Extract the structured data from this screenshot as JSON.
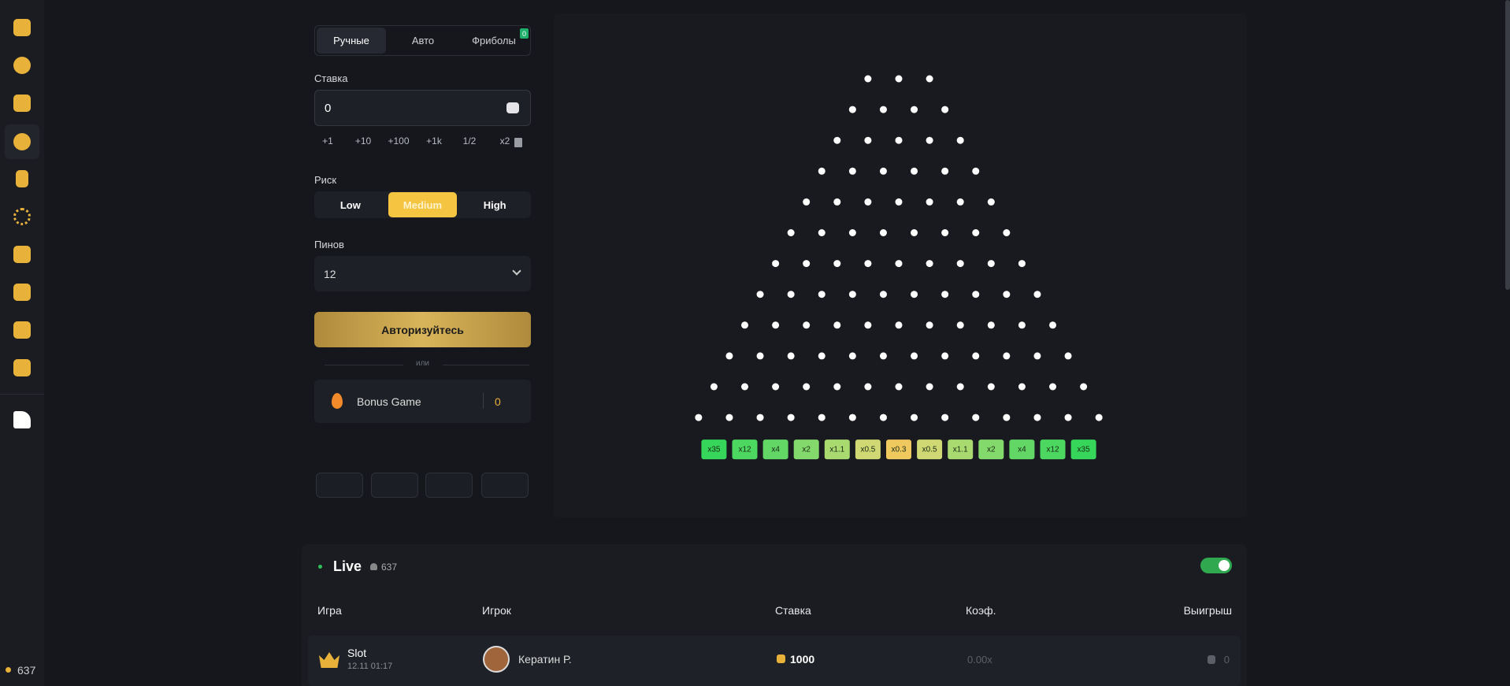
{
  "sidebar": {
    "balance": "637"
  },
  "tabs": [
    "Ручные",
    "Авто",
    "Фриболы"
  ],
  "freebets_badge": "0",
  "bet": {
    "label": "Ставка",
    "value": "0",
    "quick": [
      "+1",
      "+10",
      "+100",
      "+1k",
      "1/2",
      "x2"
    ]
  },
  "risk": {
    "label": "Риск",
    "options": [
      "Low",
      "Medium",
      "High"
    ],
    "selected": 1
  },
  "pins": {
    "label": "Пинов",
    "value": "12"
  },
  "login_button": "Авторизуйтесь",
  "or": "или",
  "bonus": {
    "name": "Bonus Game",
    "value": "0"
  },
  "board": {
    "slots": [
      {
        "label": "x35",
        "color": "#35d65a"
      },
      {
        "label": "x12",
        "color": "#4cd860"
      },
      {
        "label": "x4",
        "color": "#62d766"
      },
      {
        "label": "x2",
        "color": "#84d96c"
      },
      {
        "label": "x1.1",
        "color": "#a9da70"
      },
      {
        "label": "x0.5",
        "color": "#cfd873"
      },
      {
        "label": "x0.3",
        "color": "#f0c95e"
      },
      {
        "label": "x0.5",
        "color": "#cfd873"
      },
      {
        "label": "x1.1",
        "color": "#a9da70"
      },
      {
        "label": "x2",
        "color": "#84d96c"
      },
      {
        "label": "x4",
        "color": "#62d766"
      },
      {
        "label": "x12",
        "color": "#4cd860"
      },
      {
        "label": "x35",
        "color": "#35d65a"
      }
    ]
  },
  "live": {
    "title": "Live",
    "online": "637",
    "columns": [
      "Игра",
      "Игрок",
      "Ставка",
      "Коэф.",
      "Выигрыш"
    ],
    "rows": [
      {
        "game": "Slot",
        "time": "12.11 01:17",
        "player": "Кератин Р.",
        "bet": "1000",
        "coef": "0.00x",
        "win": "0"
      }
    ]
  }
}
